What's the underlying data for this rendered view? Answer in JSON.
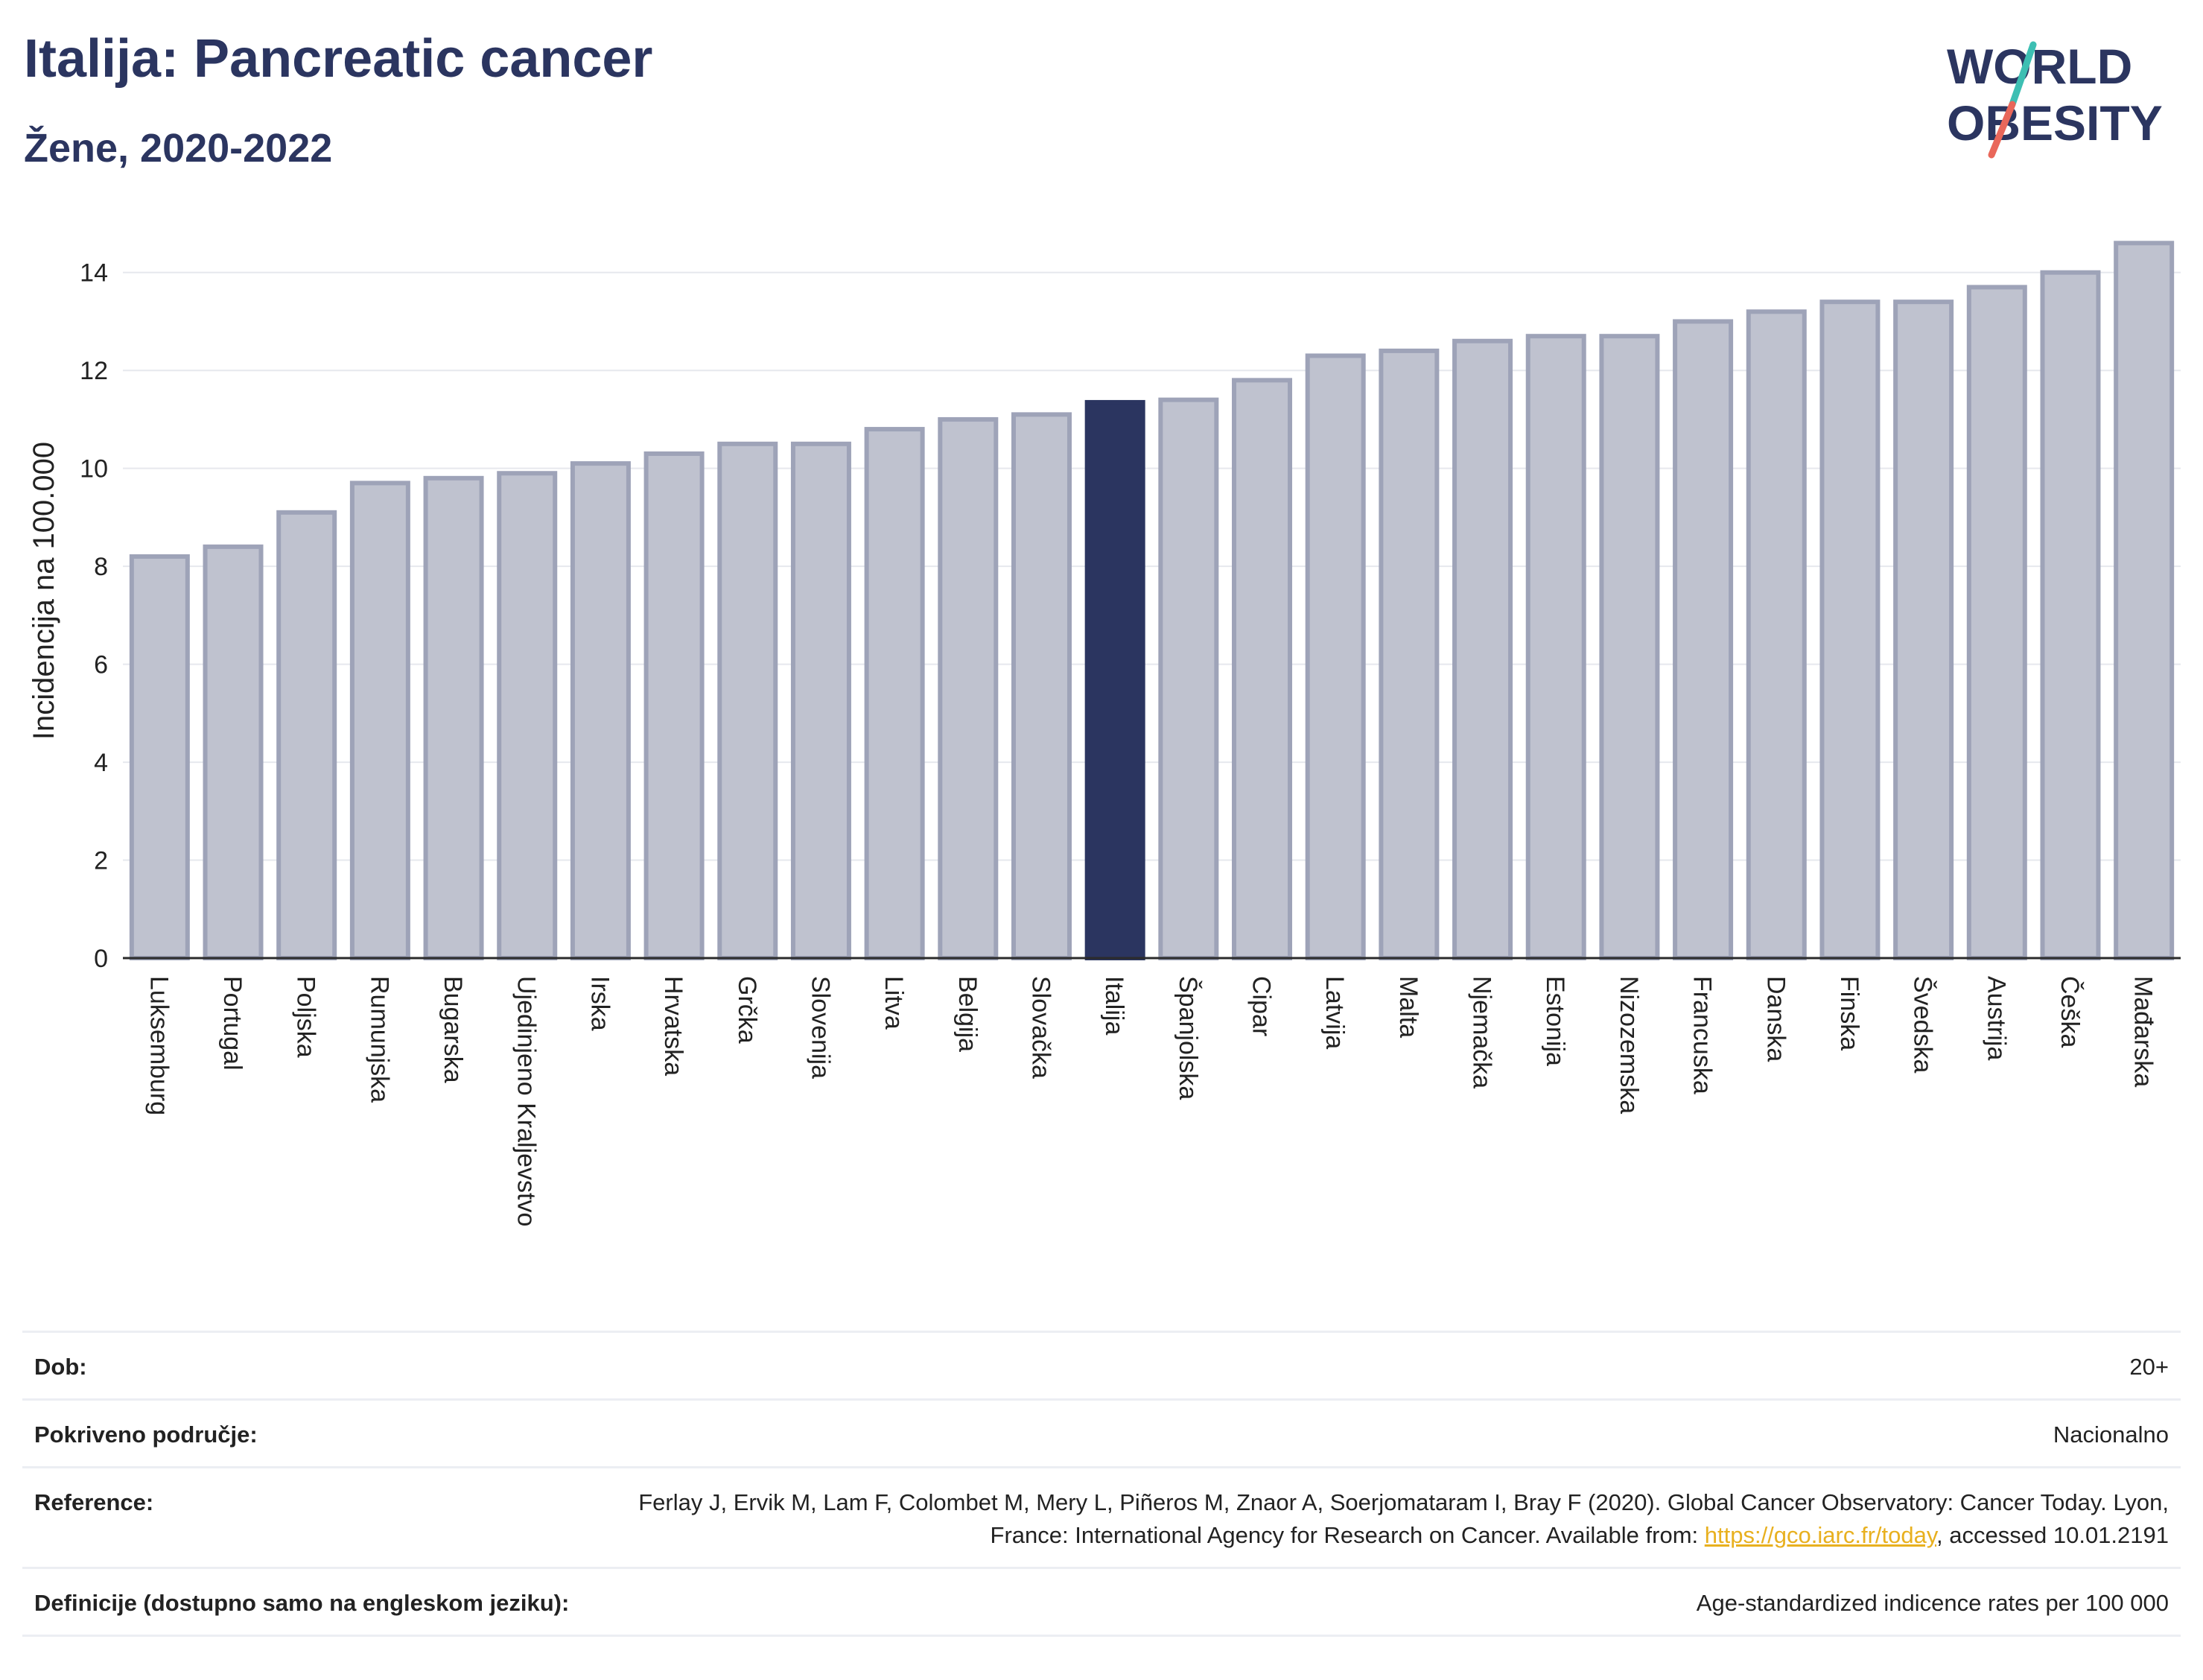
{
  "header": {
    "title": "Italija: Pancreatic cancer",
    "subtitle": "Žene, 2020-2022"
  },
  "logo": {
    "line1": "WORLD",
    "line2": "OBESITY",
    "slash_colors": [
      "#3dbfb3",
      "#e9675a"
    ]
  },
  "chart_data": {
    "type": "bar",
    "ylabel": "Incidencija na 100.000",
    "ylim": [
      0,
      15
    ],
    "yticks": [
      0,
      2,
      4,
      6,
      8,
      10,
      12,
      14
    ],
    "grid": true,
    "highlight": "Italija",
    "colors": {
      "bar": "#bfc2cf",
      "bar_border": "#9ea3b8",
      "highlight": "#2b3560"
    },
    "categories": [
      "Luksemburg",
      "Portugal",
      "Poljska",
      "Rumunjska",
      "Bugarska",
      "Ujedinjeno Kraljevstvo",
      "Irska",
      "Hrvatska",
      "Grčka",
      "Slovenija",
      "Litva",
      "Belgija",
      "Slovačka",
      "Italija",
      "Španjolska",
      "Cipar",
      "Latvija",
      "Malta",
      "Njemačka",
      "Estonija",
      "Nizozemska",
      "Francuska",
      "Danska",
      "Finska",
      "Švedska",
      "Austrija",
      "Češka",
      "Mađarska"
    ],
    "values": [
      8.2,
      8.4,
      9.1,
      9.7,
      9.8,
      9.9,
      10.1,
      10.3,
      10.5,
      10.5,
      10.8,
      11.0,
      11.1,
      11.35,
      11.4,
      11.8,
      12.3,
      12.4,
      12.6,
      12.7,
      12.7,
      13.0,
      13.2,
      13.4,
      13.4,
      13.7,
      14.0,
      14.6
    ]
  },
  "meta": {
    "age_label": "Dob:",
    "age_value": "20+",
    "coverage_label": "Pokriveno područje:",
    "coverage_value": "Nacionalno",
    "reference_label": "Reference:",
    "reference_text_1": "Ferlay J, Ervik M, Lam F, Colombet M, Mery L, Piñeros M, Znaor A, Soerjomataram I, Bray F (2020). Global Cancer Observatory: Cancer Today. Lyon, France: International Agency for Research on Cancer. Available from: ",
    "reference_link": "https://gco.iarc.fr/today",
    "reference_text_2": ", accessed 10.01.2191",
    "definition_label": "Definicije (dostupno samo na engleskom jeziku):",
    "definition_value": "Age-standardized indicence rates per 100 000"
  }
}
